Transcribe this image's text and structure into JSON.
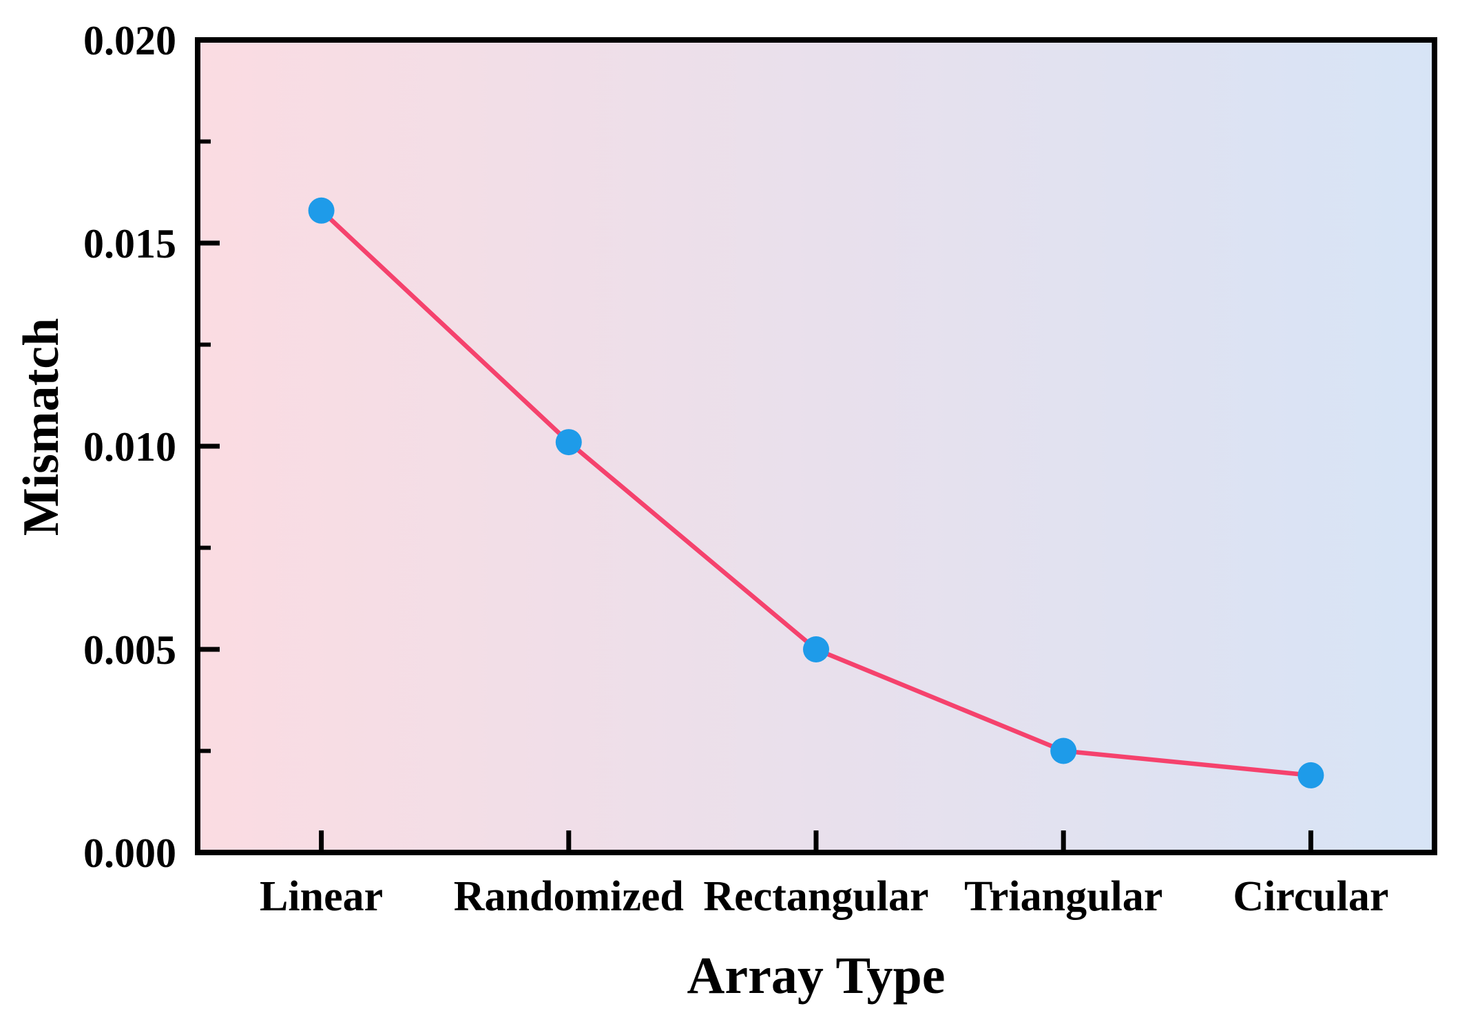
{
  "chart_data": {
    "type": "line",
    "title": "",
    "xlabel": "Array Type",
    "ylabel": "Mismatch",
    "categories": [
      "Linear",
      "Randomized",
      "Rectangular",
      "Triangular",
      "Circular"
    ],
    "values": [
      0.0158,
      0.0101,
      0.005,
      0.0025,
      0.0019
    ],
    "ylim": [
      0,
      0.02
    ],
    "y_major_ticks": [
      0,
      0.005,
      0.01,
      0.015,
      0.02
    ],
    "y_tick_labels": [
      "0.000",
      "0.005",
      "0.010",
      "0.015",
      "0.020"
    ],
    "y_minor_ticks": [
      0.0025,
      0.0075,
      0.0125,
      0.0175
    ],
    "grid": false,
    "legend": "none",
    "colors": {
      "line": "#F5426D",
      "marker": "#1E9BE9",
      "bg_left": "#FBDCE2",
      "bg_right": "#D7E4F6",
      "axis": "#000000"
    }
  }
}
